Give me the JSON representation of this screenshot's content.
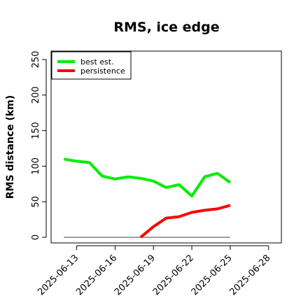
{
  "chart_data": {
    "type": "line",
    "title": "RMS, ice edge",
    "xlabel": "",
    "ylabel": "RMS distance (km)",
    "ylim": [
      0,
      250
    ],
    "xlim": [
      "2025-06-11",
      "2025-06-29"
    ],
    "yticks": [
      0,
      50,
      100,
      150,
      200,
      250
    ],
    "xticks": [
      "2025-06-13",
      "2025-06-16",
      "2025-06-19",
      "2025-06-22",
      "2025-06-25",
      "2025-06-28"
    ],
    "grid": false,
    "legend_position": "top-left",
    "series": [
      {
        "name": "best est.",
        "color": "#00ee00",
        "x": [
          "2025-06-12",
          "2025-06-13",
          "2025-06-14",
          "2025-06-15",
          "2025-06-16",
          "2025-06-17",
          "2025-06-18",
          "2025-06-19",
          "2025-06-20",
          "2025-06-21",
          "2025-06-22",
          "2025-06-23",
          "2025-06-24",
          "2025-06-25"
        ],
        "values": [
          110,
          107,
          105,
          86,
          82,
          85,
          83,
          79,
          70,
          74,
          58,
          85,
          90,
          77
        ]
      },
      {
        "name": "persistence",
        "color": "#ff0000",
        "x": [
          "2025-06-18",
          "2025-06-19",
          "2025-06-20",
          "2025-06-21",
          "2025-06-22",
          "2025-06-23",
          "2025-06-24",
          "2025-06-25"
        ],
        "values": [
          0,
          15,
          27,
          29,
          35,
          38,
          40,
          45
        ]
      }
    ],
    "baseline": {
      "color": "#666666",
      "value": 0,
      "x": [
        "2025-06-12",
        "2025-06-25"
      ]
    }
  }
}
